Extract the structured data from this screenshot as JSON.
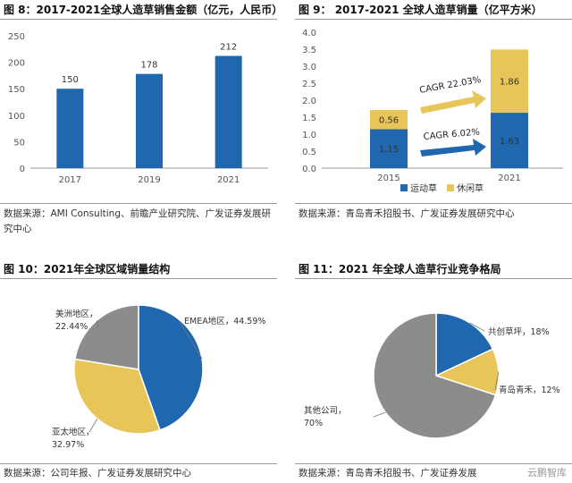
{
  "chart_data": [
    {
      "type": "bar",
      "title": "图 8：2017-2021全球人造草销售金额（亿元，人民币）",
      "categories": [
        "2017",
        "2019",
        "2021"
      ],
      "values": [
        150,
        178,
        212
      ],
      "yticks": [
        "0",
        "50",
        "100",
        "150",
        "200",
        "250"
      ],
      "ylim": [
        0,
        250
      ],
      "color": "#1f67ae",
      "source": "数据来源：AMI Consulting、前瞻产业研究院、广发证券发展研究中心"
    },
    {
      "type": "bar",
      "stacked": true,
      "title": "图 9：  2017-2021 全球人造草销量（亿平方米）",
      "categories": [
        "2015",
        "2021"
      ],
      "series": [
        {
          "name": "运动草",
          "values": [
            1.15,
            1.63
          ],
          "color": "#1f67ae"
        },
        {
          "name": "休闲草",
          "values": [
            0.56,
            1.86
          ],
          "color": "#e8c558"
        }
      ],
      "yticks": [
        "0.0",
        "0.5",
        "1.0",
        "1.5",
        "2.0",
        "2.5",
        "3.0",
        "3.5",
        "4.0"
      ],
      "ylim": [
        0,
        4.0
      ],
      "annotations": [
        {
          "text": "CAGR 22.03%",
          "color": "#e8c558"
        },
        {
          "text": "CAGR 6.02%",
          "color": "#1f67ae"
        }
      ],
      "legend_position": "bottom",
      "source": "数据来源：青岛青禾招股书、广发证券发展研究中心"
    },
    {
      "type": "pie",
      "title": "图 10：2021年全球区域销量结构",
      "slices": [
        {
          "label": "EMEA地区，44.59%",
          "value": 44.59,
          "color": "#1f67ae"
        },
        {
          "label": "亚太地区，\n32.97%",
          "value": 32.97,
          "color": "#e8c558"
        },
        {
          "label": "美洲地区，\n22.44%",
          "value": 22.44,
          "color": "#8c8c8c"
        }
      ],
      "source": "数据来源：公司年报、广发证券发展研究中心"
    },
    {
      "type": "pie",
      "title": "图 11：2021 年全球人造草行业竞争格局",
      "slices": [
        {
          "label": "共创草坪，18%",
          "value": 18,
          "color": "#1f67ae"
        },
        {
          "label": "青岛青禾，12%",
          "value": 12,
          "color": "#e8c558"
        },
        {
          "label": "其他公司，\n70%",
          "value": 70,
          "color": "#8c8c8c"
        }
      ],
      "source": "数据来源：青岛青禾招股书、广发证券发展研究中心"
    }
  ],
  "watermark": "云鹏智库"
}
